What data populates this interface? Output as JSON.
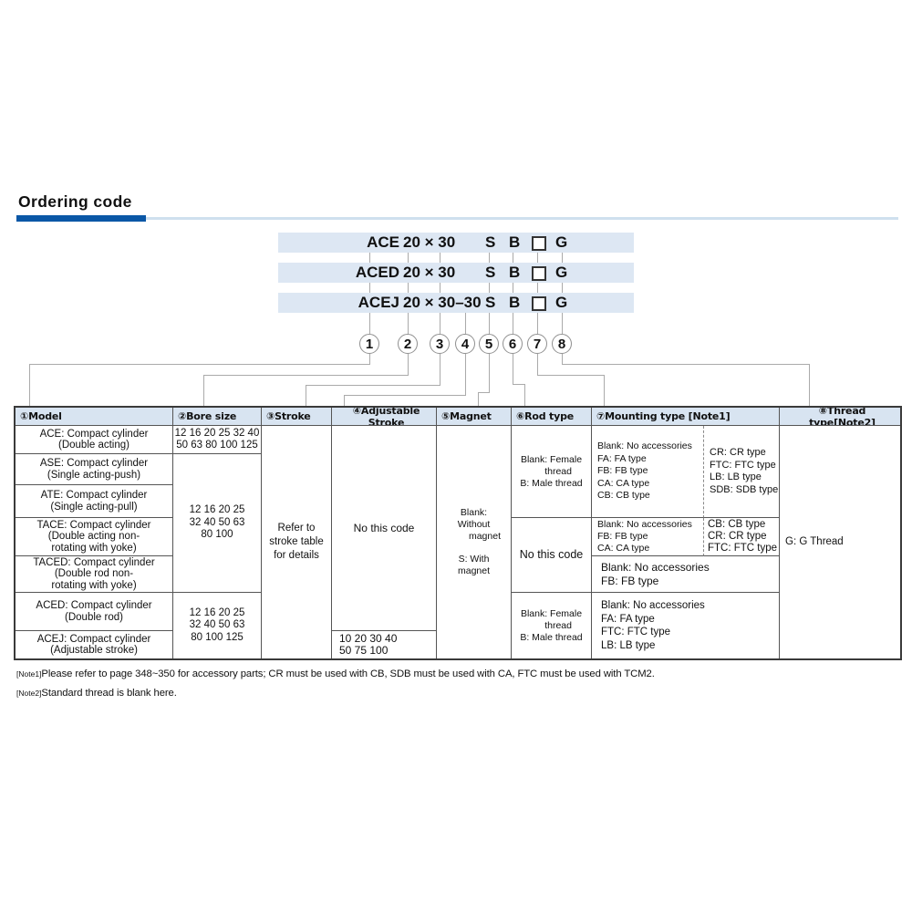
{
  "title": "Ordering code",
  "colors": {
    "accent_blue": "#0a57a6",
    "accent_light_blue": "#cfe0ee",
    "bar_background": "#dde7f3",
    "header_background": "#d8e4f1"
  },
  "bars": [
    {
      "model": "ACE",
      "size": "20 × 30",
      "magnet": "S",
      "rod": "B",
      "thread": "G"
    },
    {
      "model": "ACED",
      "size": "20 × 30",
      "magnet": "S",
      "rod": "B",
      "thread": "G"
    },
    {
      "model": "ACEJ",
      "size": "20 × 30–30",
      "magnet": "S",
      "rod": "B",
      "thread": "G"
    }
  ],
  "circles": [
    "1",
    "2",
    "3",
    "4",
    "5",
    "6",
    "7",
    "8"
  ],
  "table": {
    "headers": [
      "①Model",
      "②Bore size",
      "③Stroke",
      "④Adjustable Stroke",
      "⑤Magnet",
      "⑥Rod type",
      "⑦Mounting type [Note1]",
      "⑧Thread type[Note2]"
    ],
    "models": [
      "ACE: Compact cylinder\n(Double acting)",
      "ASE: Compact cylinder\n(Single acting-push)",
      "ATE: Compact cylinder\n(Single acting-pull)",
      "TACE: Compact cylinder\n(Double acting non-\nrotating with yoke)",
      "TACED: Compact cylinder\n(Double rod non-\nrotating with yoke)",
      "ACED: Compact cylinder\n(Double rod)",
      "ACEJ: Compact cylinder\n(Adjustable stroke)"
    ],
    "bore": [
      "12 16 20 25 32 40\n50 63 80 100 125",
      "12 16 20 25\n32 40 50 63\n80 100",
      "12 16 20 25\n32 40 50 63\n80 100 125"
    ],
    "stroke": "Refer to\nstroke table\nfor details",
    "adjustable": {
      "main": "No this code",
      "acej": "10 20 30 40\n50 75 100"
    },
    "magnet": {
      "l1": "Blank: Without",
      "l2": "magnet",
      "l3": "S: With magnet"
    },
    "rod": {
      "female": {
        "l1": "Blank: Female",
        "l2": "thread",
        "l3": "B: Male thread"
      },
      "none": "No this code"
    },
    "mounting": {
      "a_left": "Blank: No accessories\nFA: FA type\nFB: FB type\nCA: CA type\nCB: CB type",
      "a_right": "CR: CR type\nFTC: FTC type\nLB: LB type\nSDB: SDB type",
      "b_left": "Blank: No accessories\nFB: FB type\nCA: CA type",
      "b_right": "CB: CB type\nCR: CR type\nFTC: FTC type",
      "c": "Blank: No accessories\nFB: FB type",
      "d": "Blank: No accessories\nFA: FA type\nFTC: FTC type\nLB: LB type"
    },
    "thread": "G: G Thread"
  },
  "notes": [
    {
      "tag": "[Note1]",
      "text": "Please refer to page 348~350 for accessory parts; CR must be used with CB, SDB must be used with CA, FTC must be used with TCM2."
    },
    {
      "tag": "[Note2]",
      "text": "Standard thread is blank here."
    }
  ]
}
